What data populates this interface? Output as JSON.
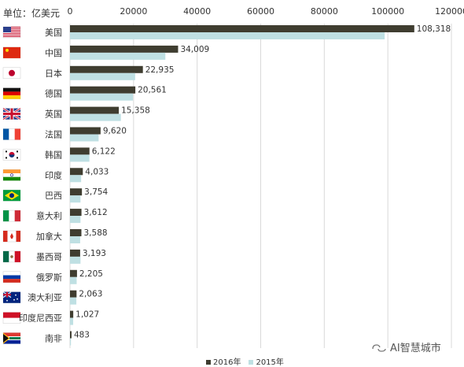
{
  "unit_label": "单位：亿美元",
  "watermark": "AI智慧城市",
  "colors": {
    "y2016": "#3f3d30",
    "y2015": "#bfe0e3",
    "grid": "#d9d9d9"
  },
  "chart_data": {
    "type": "bar",
    "orientation": "horizontal",
    "xlim": [
      0,
      120000
    ],
    "x_ticks": [
      "0",
      "20000",
      "40000",
      "60000",
      "80000",
      "100000",
      "120000"
    ],
    "grid": true,
    "legend_position": "bottom",
    "categories": [
      "美国",
      "中国",
      "日本",
      "德国",
      "英国",
      "法国",
      "韩国",
      "印度",
      "巴西",
      "意大利",
      "加拿大",
      "墨西哥",
      "俄罗斯",
      "澳大利亚",
      "印度尼西亚",
      "南非"
    ],
    "flag_icons": [
      "us-flag-icon",
      "cn-flag-icon",
      "jp-flag-icon",
      "de-flag-icon",
      "gb-flag-icon",
      "fr-flag-icon",
      "kr-flag-icon",
      "in-flag-icon",
      "br-flag-icon",
      "it-flag-icon",
      "ca-flag-icon",
      "mx-flag-icon",
      "ru-flag-icon",
      "au-flag-icon",
      "id-flag-icon",
      "za-flag-icon"
    ],
    "series": [
      {
        "name": "2016年",
        "values": [
          108318,
          34009,
          22935,
          20561,
          15358,
          9620,
          6122,
          4033,
          3754,
          3612,
          3588,
          3193,
          2205,
          2063,
          1027,
          483
        ],
        "labels": [
          "108,318",
          "34,009",
          "22,935",
          "20,561",
          "15,358",
          "9,620",
          "6,122",
          "4,033",
          "3,754",
          "3,612",
          "3,588",
          "3,193",
          "2,205",
          "2,063",
          "1,027",
          "483"
        ]
      },
      {
        "name": "2015年",
        "values": [
          99000,
          30000,
          20500,
          19800,
          16000,
          9000,
          6100,
          3500,
          3300,
          3300,
          3200,
          3300,
          2100,
          2000,
          1000,
          300
        ]
      }
    ]
  }
}
